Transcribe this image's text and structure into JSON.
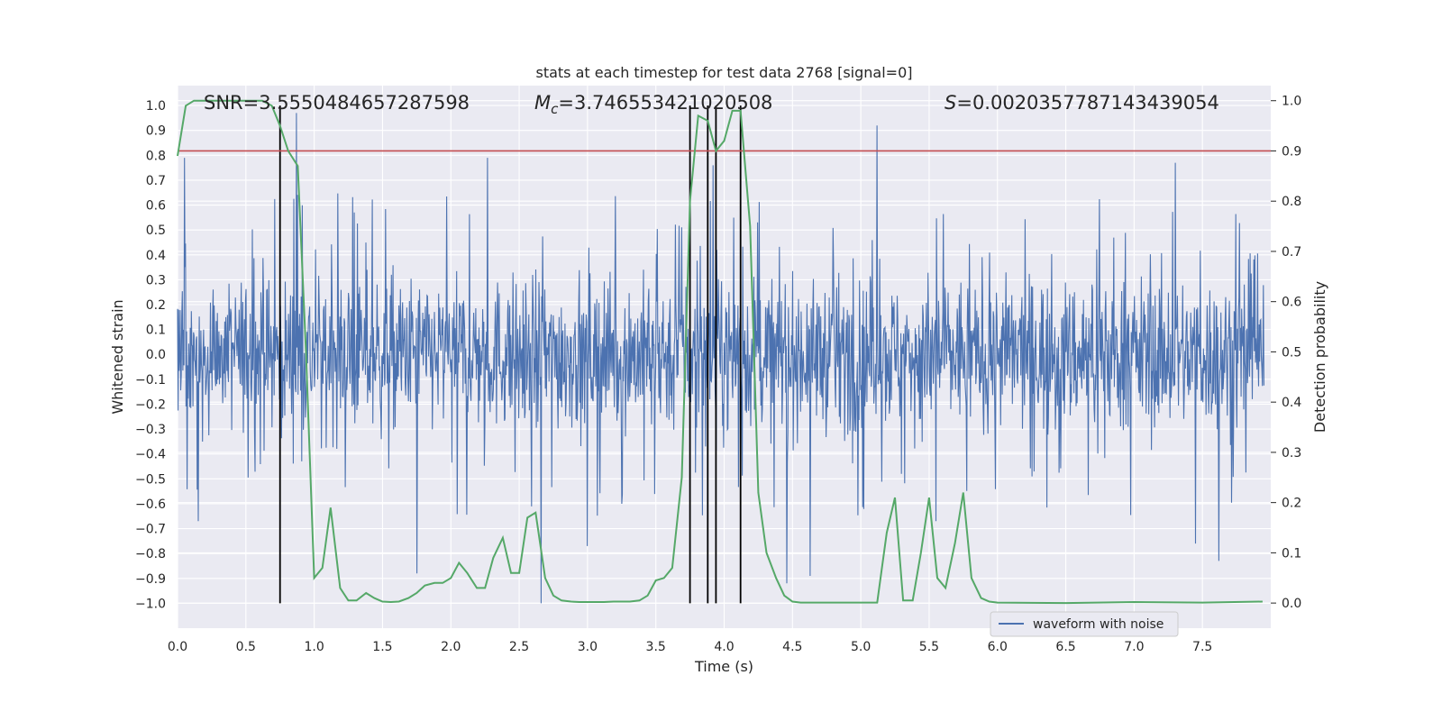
{
  "chart_data": {
    "type": "line",
    "title": "stats at each timestep for test data 2768 [signal=0]",
    "xlabel": "Time (s)",
    "ylabel_left": "Whitened strain",
    "ylabel_right": "Detection probability",
    "xlim": [
      0.0,
      8.0
    ],
    "ylim_left": [
      -1.1,
      1.08
    ],
    "ylim_right": [
      -0.05,
      1.03
    ],
    "x_ticks": [
      0.0,
      0.5,
      1.0,
      1.5,
      2.0,
      2.5,
      3.0,
      3.5,
      4.0,
      4.5,
      5.0,
      5.5,
      6.0,
      6.5,
      7.0,
      7.5
    ],
    "x_tick_labels": [
      "0.0",
      "0.5",
      "1.0",
      "1.5",
      "2.0",
      "2.5",
      "3.0",
      "3.5",
      "4.0",
      "4.5",
      "5.0",
      "5.5",
      "6.0",
      "6.5",
      "7.0",
      "7.5"
    ],
    "y_left_ticks": [
      -1.0,
      -0.9,
      -0.8,
      -0.7,
      -0.6,
      -0.5,
      -0.4,
      -0.3,
      -0.2,
      -0.1,
      0.0,
      0.1,
      0.2,
      0.3,
      0.4,
      0.5,
      0.6,
      0.7,
      0.8,
      0.9,
      1.0
    ],
    "y_left_tick_labels": [
      "−1.0",
      "−0.9",
      "−0.8",
      "−0.7",
      "−0.6",
      "−0.5",
      "−0.4",
      "−0.3",
      "−0.2",
      "−0.1",
      "0.0",
      "0.1",
      "0.2",
      "0.3",
      "0.4",
      "0.5",
      "0.6",
      "0.7",
      "0.8",
      "0.9",
      "1.0"
    ],
    "y_right_ticks": [
      0.0,
      0.1,
      0.2,
      0.3,
      0.4,
      0.5,
      0.6,
      0.7,
      0.8,
      0.9,
      1.0
    ],
    "y_right_tick_labels": [
      "0.0",
      "0.1",
      "0.2",
      "0.3",
      "0.4",
      "0.5",
      "0.6",
      "0.7",
      "0.8",
      "0.9",
      "1.0"
    ],
    "annotations": {
      "snr": "SNR=3.5550484657287598",
      "mc_prefix": "M",
      "mc_sub": "c",
      "mc_value": "=3.746553421020508",
      "s_prefix": "S",
      "s_value": "=0.0020357787143439054"
    },
    "threshold_right": 0.9,
    "vertical_lines_x": [
      0.75,
      3.75,
      3.88,
      3.94,
      4.12
    ],
    "legend": {
      "label": "waveform with noise",
      "location": "lower-right"
    },
    "series": [
      {
        "name": "waveform with noise",
        "axis": "left",
        "color": "#4c72b0",
        "samples": 2048,
        "noise_envelope": 0.27,
        "spikes": [
          {
            "x": 0.05,
            "y": 0.79
          },
          {
            "x": 0.87,
            "y": 0.97
          },
          {
            "x": 2.27,
            "y": 0.79
          },
          {
            "x": 5.12,
            "y": 0.92
          },
          {
            "x": 7.3,
            "y": 0.77
          },
          {
            "x": 2.66,
            "y": -1.0
          },
          {
            "x": 4.46,
            "y": -0.92
          },
          {
            "x": 1.75,
            "y": -0.88
          },
          {
            "x": 4.63,
            "y": -0.89
          },
          {
            "x": 7.45,
            "y": -0.76
          },
          {
            "x": 7.62,
            "y": -0.83
          },
          {
            "x": 3.0,
            "y": -0.77
          },
          {
            "x": 3.92,
            "y": 0.76
          },
          {
            "x": 0.15,
            "y": -0.67
          },
          {
            "x": 5.55,
            "y": -0.67
          }
        ]
      },
      {
        "name": "detection probability",
        "axis": "right",
        "color": "#55a868",
        "x": [
          0.0,
          0.06,
          0.12,
          0.18,
          0.25,
          0.31,
          0.38,
          0.44,
          0.5,
          0.56,
          0.62,
          0.69,
          0.75,
          0.81,
          0.88,
          0.94,
          1.0,
          1.06,
          1.12,
          1.19,
          1.25,
          1.31,
          1.38,
          1.44,
          1.5,
          1.56,
          1.62,
          1.69,
          1.75,
          1.81,
          1.88,
          1.94,
          2.0,
          2.06,
          2.12,
          2.19,
          2.25,
          2.31,
          2.38,
          2.44,
          2.5,
          2.56,
          2.62,
          2.69,
          2.75,
          2.81,
          2.88,
          2.94,
          3.0,
          3.06,
          3.12,
          3.19,
          3.25,
          3.31,
          3.38,
          3.44,
          3.5,
          3.56,
          3.62,
          3.69,
          3.75,
          3.81,
          3.88,
          3.94,
          4.0,
          4.06,
          4.12,
          4.19,
          4.25,
          4.31,
          4.38,
          4.44,
          4.5,
          4.56,
          4.62,
          4.69,
          4.75,
          4.81,
          4.88,
          4.94,
          5.0,
          5.06,
          5.12,
          5.19,
          5.25,
          5.31,
          5.38,
          5.44,
          5.5,
          5.56,
          5.62,
          5.69,
          5.75,
          5.81,
          5.88,
          5.94,
          6.0,
          6.5,
          7.0,
          7.5,
          7.94
        ],
        "y": [
          0.89,
          0.99,
          1.0,
          1.0,
          1.0,
          1.0,
          1.0,
          1.0,
          1.0,
          1.0,
          1.0,
          0.99,
          0.95,
          0.9,
          0.87,
          0.5,
          0.05,
          0.07,
          0.19,
          0.03,
          0.005,
          0.005,
          0.02,
          0.01,
          0.003,
          0.002,
          0.003,
          0.01,
          0.02,
          0.035,
          0.04,
          0.04,
          0.05,
          0.08,
          0.06,
          0.03,
          0.03,
          0.09,
          0.13,
          0.06,
          0.06,
          0.17,
          0.18,
          0.05,
          0.015,
          0.005,
          0.003,
          0.002,
          0.002,
          0.002,
          0.002,
          0.003,
          0.003,
          0.003,
          0.005,
          0.015,
          0.045,
          0.05,
          0.07,
          0.25,
          0.8,
          0.97,
          0.96,
          0.9,
          0.92,
          0.98,
          0.98,
          0.75,
          0.22,
          0.1,
          0.05,
          0.015,
          0.003,
          0.001,
          0.001,
          0.001,
          0.001,
          0.001,
          0.001,
          0.001,
          0.001,
          0.001,
          0.001,
          0.14,
          0.21,
          0.005,
          0.005,
          0.1,
          0.21,
          0.05,
          0.03,
          0.12,
          0.22,
          0.05,
          0.01,
          0.003,
          0.001,
          0.0,
          0.002,
          0.001,
          0.003
        ]
      }
    ]
  }
}
